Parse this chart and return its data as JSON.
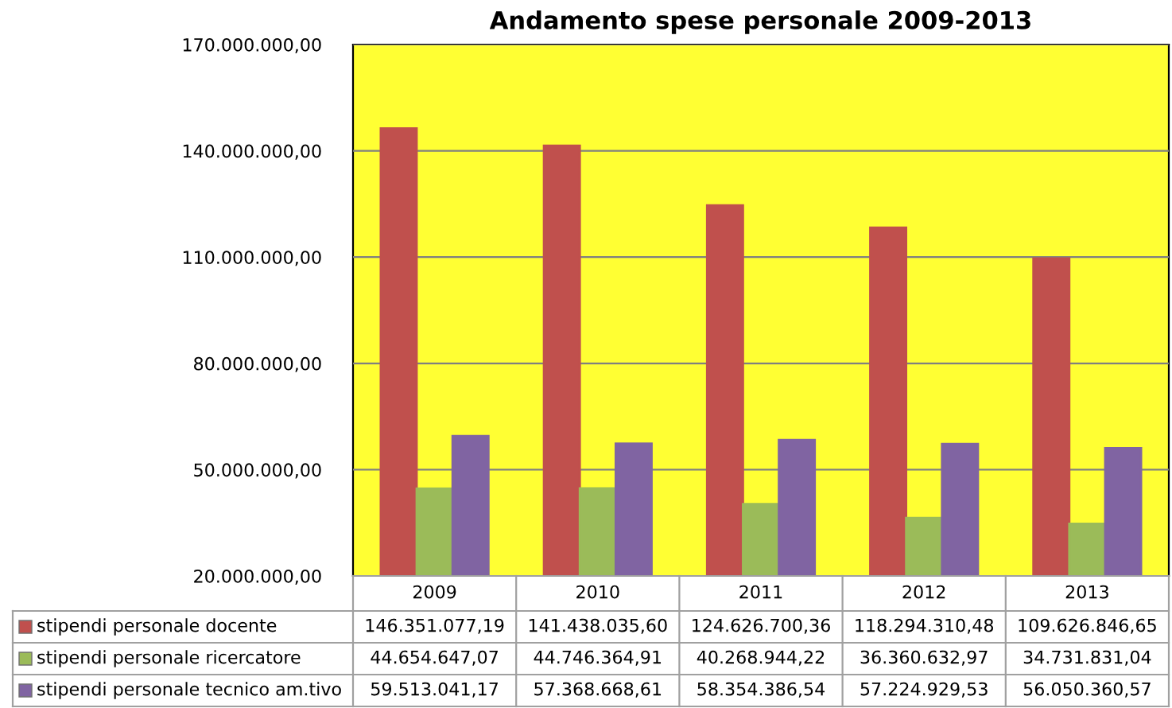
{
  "chart_data": {
    "type": "bar",
    "title": "Andamento spese personale 2009-2013",
    "categories": [
      "2009",
      "2010",
      "2011",
      "2012",
      "2013"
    ],
    "series": [
      {
        "name": "stipendi personale docente",
        "color": "#c0504d",
        "values": [
          146351077.19,
          141438035.6,
          124626700.36,
          118294310.48,
          109626846.65
        ],
        "value_labels": [
          "146.351.077,19",
          "141.438.035,60",
          "124.626.700,36",
          "118.294.310,48",
          "109.626.846,65"
        ]
      },
      {
        "name": "stipendi personale ricercatore",
        "color": "#9bbb59",
        "values": [
          44654647.07,
          44746364.91,
          40268944.22,
          36360632.97,
          34731831.04
        ],
        "value_labels": [
          "44.654.647,07",
          "44.746.364,91",
          "40.268.944,22",
          "36.360.632,97",
          "34.731.831,04"
        ]
      },
      {
        "name": "stipendi personale tecnico am.tivo",
        "color": "#8064a2",
        "values": [
          59513041.17,
          57368668.61,
          58354386.54,
          57224929.53,
          56050360.57
        ],
        "value_labels": [
          "59.513.041,17",
          "57.368.668,61",
          "58.354.386,54",
          "57.224.929,53",
          "56.050.360,57"
        ]
      }
    ],
    "ylim": [
      20000000,
      170000000
    ],
    "yticks": [
      {
        "value": 20000000,
        "label": "20.000.000,00"
      },
      {
        "value": 50000000,
        "label": "50.000.000,00"
      },
      {
        "value": 80000000,
        "label": "80.000.000,00"
      },
      {
        "value": 110000000,
        "label": "110.000.000,00"
      },
      {
        "value": 140000000,
        "label": "140.000.000,00"
      },
      {
        "value": 170000000,
        "label": "170.000.000,00"
      }
    ],
    "grid": "y",
    "legend": "bottom"
  }
}
